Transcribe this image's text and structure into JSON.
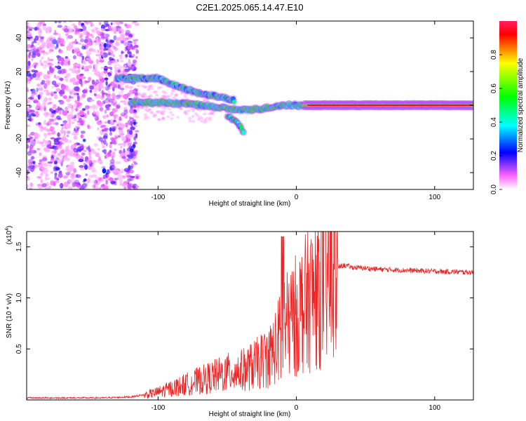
{
  "figure_title": "C2E1.2025.065.14.47.E10",
  "chart_data": [
    {
      "type": "heatmap",
      "title": "C2E1.2025.065.14.47.E10",
      "xlabel": "Height of straight line (km)",
      "ylabel": "Frequency (Hz)",
      "xlim": [
        -195,
        128
      ],
      "ylim": [
        -50,
        50
      ],
      "x_ticks": [
        -100,
        0,
        100
      ],
      "y_ticks": [
        -40,
        -20,
        0,
        20,
        40
      ],
      "colorbar": {
        "label": "Normalized spectral amplitude",
        "range": [
          0,
          1
        ],
        "ticks": [
          0.0,
          0.2,
          0.4,
          0.6,
          0.8
        ],
        "colormap": [
          "#ffffff",
          "#ff00ff",
          "#0000ff",
          "#00ffff",
          "#00ff00",
          "#ffff00",
          "#ff0000"
        ]
      },
      "features": [
        {
          "name": "main line",
          "x": [
            -120,
            -80,
            -60,
            -40,
            -25,
            -10,
            5,
            40,
            80,
            128
          ],
          "freq_hz": [
            2,
            1,
            -1,
            -3,
            -2,
            0,
            0,
            0,
            0,
            0
          ]
        },
        {
          "name": "upper branch",
          "x": [
            -130,
            -110,
            -100,
            -85,
            -70,
            -55,
            -45
          ],
          "freq_hz": [
            16,
            16,
            16,
            11,
            7,
            5,
            3
          ]
        },
        {
          "name": "lower branch",
          "x": [
            -50,
            -45,
            -40,
            -38
          ],
          "freq_hz": [
            -6,
            -9,
            -13,
            -17
          ]
        }
      ]
    },
    {
      "type": "line",
      "title": "",
      "xlabel": "Height of straight line (km)",
      "ylabel": "SNR (10 * v/v)",
      "y_scale_label": "(x10",
      "y_scale_exp": "4",
      "y_scale_close": ")",
      "xlim": [
        -195,
        128
      ],
      "ylim": [
        0,
        1.65
      ],
      "x_ticks": [
        -100,
        0,
        100
      ],
      "y_ticks": [
        0.5,
        1.0,
        1.5
      ],
      "y_tick_labels": [
        "0.5",
        "1.0",
        "1.5"
      ],
      "color": "#ee2222",
      "series": [
        {
          "name": "SNR",
          "x": [
            -195,
            -170,
            -140,
            -120,
            -110,
            -100,
            -90,
            -80,
            -70,
            -60,
            -50,
            -40,
            -30,
            -20,
            -15,
            -10,
            -5,
            0,
            10,
            20,
            30,
            35,
            40,
            60,
            80,
            100,
            128
          ],
          "y": [
            0.02,
            0.02,
            0.02,
            0.03,
            0.05,
            0.08,
            0.12,
            0.16,
            0.2,
            0.24,
            0.28,
            0.3,
            0.36,
            0.45,
            0.55,
            0.7,
            0.8,
            0.88,
            1.05,
            1.2,
            1.3,
            1.32,
            1.3,
            1.28,
            1.27,
            1.26,
            1.25
          ]
        }
      ]
    }
  ]
}
